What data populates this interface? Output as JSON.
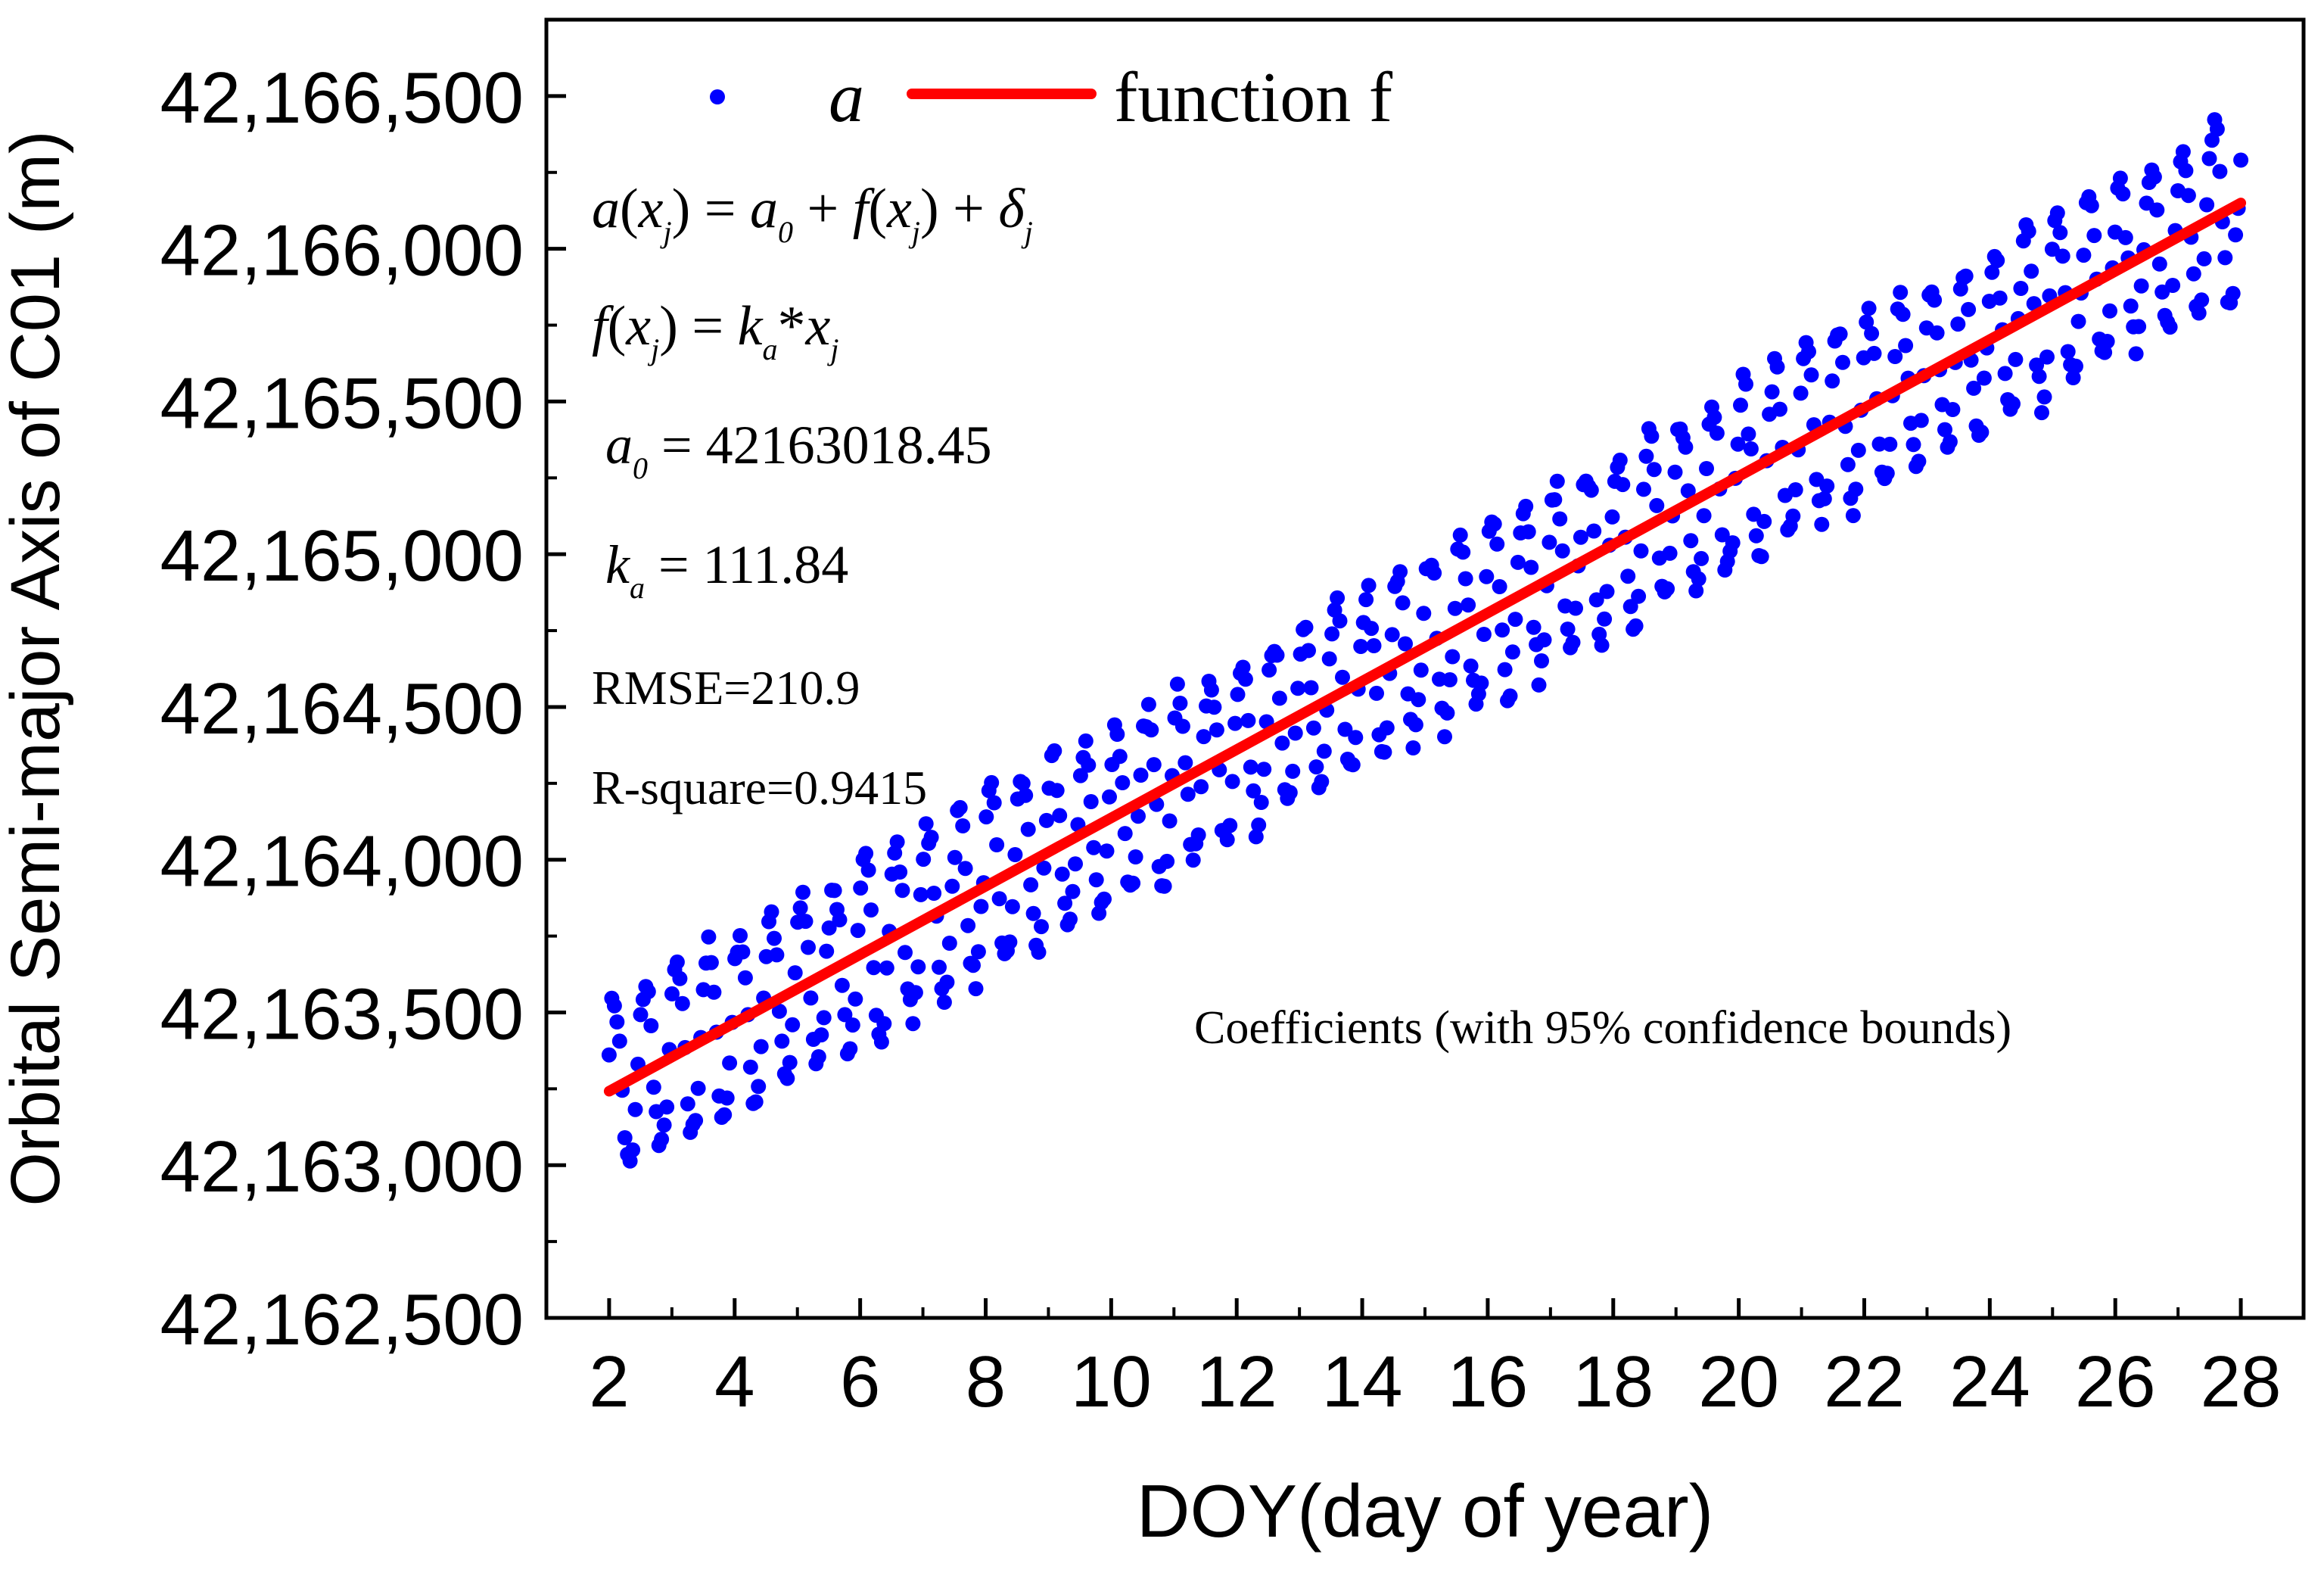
{
  "chart_data": {
    "type": "scatter",
    "title": "",
    "xlabel": "DOY(day of year)",
    "ylabel": "Orbital Semi-major Axis of C01 (m)",
    "xlim": [
      1,
      29
    ],
    "ylim": [
      42162500,
      42166750
    ],
    "xticks": [
      2,
      4,
      6,
      8,
      10,
      12,
      14,
      16,
      18,
      20,
      22,
      24,
      26,
      28
    ],
    "xtick_labels": [
      "2",
      "4",
      "6",
      "8",
      "10",
      "12",
      "14",
      "16",
      "18",
      "20",
      "22",
      "24",
      "26",
      "28"
    ],
    "yticks": [
      42162500,
      42163000,
      42163500,
      42164000,
      42164500,
      42165000,
      42165500,
      42166000,
      42166500
    ],
    "ytick_labels": [
      "42,162,500",
      "42,163,000",
      "42,163,500",
      "42,164,000",
      "42,164,500",
      "42,165,000",
      "42,165,500",
      "42,166,000",
      "42,166,500"
    ],
    "legend": [
      {
        "label": "a",
        "marker": "dot",
        "color": "#0000FF"
      },
      {
        "label": "function f",
        "marker": "line",
        "color": "#FF0000"
      }
    ],
    "fit_line": {
      "name": "function f",
      "x": [
        2,
        28
      ],
      "y": [
        42163242.1,
        42166150.0
      ],
      "color": "#FF0000"
    },
    "scatter_series": {
      "name": "a",
      "color": "#0000FF",
      "x_start": 2.0,
      "x_end": 28.0,
      "count": 624,
      "intercept": 42163018.45,
      "slope": 111.84,
      "amplitude": 290,
      "period_days": 0.5
    },
    "annotations": {
      "eq1": {
        "a": "a",
        "x": "x",
        "j": "j",
        "eq": " = ",
        "a0": "a",
        "a0_sub": "0",
        "plus": " + ",
        "f": "f",
        "delta": "δ"
      },
      "eq2": {
        "f": "f",
        "x": "x",
        "j": "j",
        "eq": " = ",
        "k": "k",
        "k_sub": "a",
        "star": "*",
        "xj": "x"
      },
      "a0_text": {
        "sym": "a",
        "sub": "0",
        "value": " = 42163018.45"
      },
      "ka_text": {
        "sym": "k",
        "sub": "a",
        "value": " = 111.84"
      },
      "rmse": "RMSE=210.9",
      "rsq": "R-square=0.9415",
      "coeff": "Coefficients (with 95% confidence bounds)"
    }
  },
  "colors": {
    "point": "#0000FF",
    "line": "#FF0000",
    "axis": "#000000"
  }
}
